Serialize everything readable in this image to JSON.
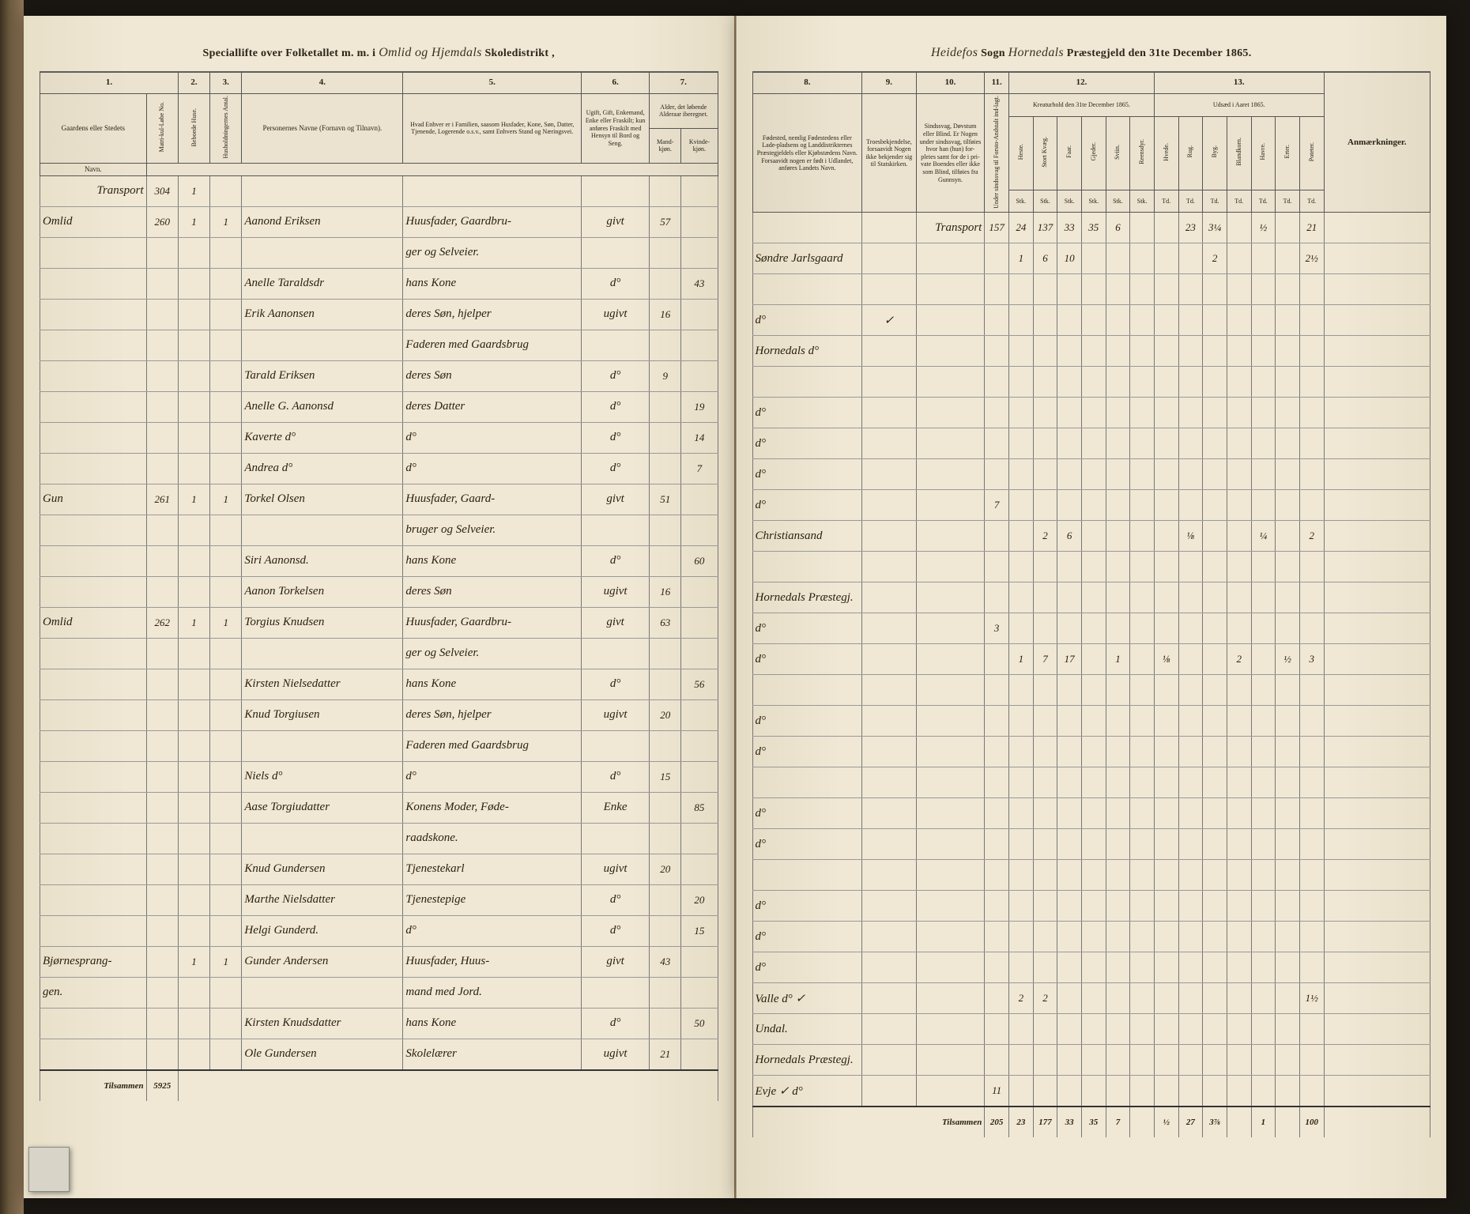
{
  "header_left": {
    "printed_pre": "Speciallifte over Folketallet m. m. i",
    "script_mid": "Omlid og Hjemdals",
    "printed_post": "Skoledistrikt ,"
  },
  "header_right": {
    "script_pre": "Heidefos",
    "printed_sogn": "Sogn",
    "script_mid": "Hornedals",
    "printed_post": "Præstegjeld den 31te December 1865."
  },
  "col_nums_left": [
    "1.",
    "2.",
    "3.",
    "4.",
    "5.",
    "6.",
    "7."
  ],
  "col_nums_right": [
    "8.",
    "9.",
    "10.",
    "11.",
    "12.",
    "13."
  ],
  "left_headers": {
    "gaardens": "Gaardens eller Stedets",
    "navn": "Navn.",
    "matr": "Matri-kul-Løbe No.",
    "bebo": "Beboede Huse.",
    "hush": "Husholdningernes Antal.",
    "personernes": "Personernes Navne (Fornavn og Tilnavn).",
    "stand": "Hvad Enhver er i Familien, saasom Husfader, Kone, Søn, Datter, Tjenende, Logerende o.s.v., samt Enhvers Stand og Næringsvei.",
    "ugift": "Ugift, Gift, Enkemand, Enke eller Fraskilt; kun anføres Fraskilt med Hensyn til Bord og Seng.",
    "alder": "Alder, det løbende Alderaar iberegnet.",
    "mk": "Mand-kjøn.",
    "kv": "Kvinde-kjøn."
  },
  "right_headers": {
    "fodested": "Fødested, nemlig Fødestedens eller Lade-pladsens og Landdistrikternes Præstegjeldels eller Kjøbstædens Navn. Forsaavidt nogen er født i Udlandet, anføres Landets Navn.",
    "tro": "Troesbekjendelse, forsaavidt Nogen ikke bekjender sig til Statskirken.",
    "sind": "Sindssvag, Døvstum eller Blind. Er Nogen under sindssvag, tilføies hvor han (hun) for-pleies samt for de i pri-vate Boendes eller ikke som Blind, tilføies fra Gunnsyn.",
    "anke": "Under sindssvag til Forsto-Andstalt ind-lagt.",
    "kreaturhold": "Kreaturhold den 31te December 1865.",
    "udsad": "Udsæd i Aaret 1865.",
    "k_heste": "Heste.",
    "k_stort": "Stort Kvæg.",
    "k_faar": "Faar.",
    "k_gjeder": "Gjeder.",
    "k_sviin": "Sviin.",
    "k_reen": "Reensdyr.",
    "u_hvede": "Hvede.",
    "u_rug": "Rug.",
    "u_byg": "Byg.",
    "u_bland": "Blandkorn.",
    "u_havre": "Havre.",
    "u_erter": "Erter.",
    "u_pot": "Poteter.",
    "anm": "Anmærkninger."
  },
  "stk": "Stk.",
  "td": "Td.",
  "transport_label": "Transport",
  "tilsammen_label": "Tilsammen",
  "transport_left_matr": "304",
  "rows_left": [
    {
      "gaard": "Omlid",
      "matr": "260",
      "b": "1",
      "h": "1",
      "navn": "Aanond Eriksen",
      "stand": "Huusfader, Gaardbru-",
      "ugift": "givt",
      "mk": "57",
      "kv": ""
    },
    {
      "gaard": "",
      "matr": "",
      "b": "",
      "h": "",
      "navn": "",
      "stand": "ger og Selveier.",
      "ugift": "",
      "mk": "",
      "kv": ""
    },
    {
      "gaard": "",
      "matr": "",
      "b": "",
      "h": "",
      "navn": "Anelle Taraldsdr",
      "stand": "hans Kone",
      "ugift": "d°",
      "mk": "",
      "kv": "43"
    },
    {
      "gaard": "",
      "matr": "",
      "b": "",
      "h": "",
      "navn": "Erik Aanonsen",
      "stand": "deres Søn, hjelper",
      "ugift": "ugivt",
      "mk": "16",
      "kv": ""
    },
    {
      "gaard": "",
      "matr": "",
      "b": "",
      "h": "",
      "navn": "",
      "stand": "Faderen med Gaardsbrug",
      "ugift": "",
      "mk": "",
      "kv": ""
    },
    {
      "gaard": "",
      "matr": "",
      "b": "",
      "h": "",
      "navn": "Tarald Eriksen",
      "stand": "deres Søn",
      "ugift": "d°",
      "mk": "9",
      "kv": ""
    },
    {
      "gaard": "",
      "matr": "",
      "b": "",
      "h": "",
      "navn": "Anelle G. Aanonsd",
      "stand": "deres Datter",
      "ugift": "d°",
      "mk": "",
      "kv": "19"
    },
    {
      "gaard": "",
      "matr": "",
      "b": "",
      "h": "",
      "navn": "Kaverte d°",
      "stand": "d°",
      "ugift": "d°",
      "mk": "",
      "kv": "14"
    },
    {
      "gaard": "",
      "matr": "",
      "b": "",
      "h": "",
      "navn": "Andrea d°",
      "stand": "d°",
      "ugift": "d°",
      "mk": "",
      "kv": "7"
    },
    {
      "gaard": "Gun",
      "matr": "261",
      "b": "1",
      "h": "1",
      "navn": "Torkel Olsen",
      "stand": "Huusfader, Gaard-",
      "ugift": "givt",
      "mk": "51",
      "kv": ""
    },
    {
      "gaard": "",
      "matr": "",
      "b": "",
      "h": "",
      "navn": "",
      "stand": "bruger og Selveier.",
      "ugift": "",
      "mk": "",
      "kv": ""
    },
    {
      "gaard": "",
      "matr": "",
      "b": "",
      "h": "",
      "navn": "Siri Aanonsd.",
      "stand": "hans Kone",
      "ugift": "d°",
      "mk": "",
      "kv": "60"
    },
    {
      "gaard": "",
      "matr": "",
      "b": "",
      "h": "",
      "navn": "Aanon Torkelsen",
      "stand": "deres Søn",
      "ugift": "ugivt",
      "mk": "16",
      "kv": ""
    },
    {
      "gaard": "Omlid",
      "matr": "262",
      "b": "1",
      "h": "1",
      "navn": "Torgius Knudsen",
      "stand": "Huusfader, Gaardbru-",
      "ugift": "givt",
      "mk": "63",
      "kv": ""
    },
    {
      "gaard": "",
      "matr": "",
      "b": "",
      "h": "",
      "navn": "",
      "stand": "ger og Selveier.",
      "ugift": "",
      "mk": "",
      "kv": ""
    },
    {
      "gaard": "",
      "matr": "",
      "b": "",
      "h": "",
      "navn": "Kirsten Nielsedatter",
      "stand": "hans Kone",
      "ugift": "d°",
      "mk": "",
      "kv": "56"
    },
    {
      "gaard": "",
      "matr": "",
      "b": "",
      "h": "",
      "navn": "Knud Torgiusen",
      "stand": "deres Søn, hjelper",
      "ugift": "ugivt",
      "mk": "20",
      "kv": ""
    },
    {
      "gaard": "",
      "matr": "",
      "b": "",
      "h": "",
      "navn": "",
      "stand": "Faderen med Gaardsbrug",
      "ugift": "",
      "mk": "",
      "kv": ""
    },
    {
      "gaard": "",
      "matr": "",
      "b": "",
      "h": "",
      "navn": "Niels d°",
      "stand": "d°",
      "ugift": "d°",
      "mk": "15",
      "kv": ""
    },
    {
      "gaard": "",
      "matr": "",
      "b": "",
      "h": "",
      "navn": "Aase Torgiudatter",
      "stand": "Konens Moder, Føde-",
      "ugift": "Enke",
      "mk": "",
      "kv": "85"
    },
    {
      "gaard": "",
      "matr": "",
      "b": "",
      "h": "",
      "navn": "",
      "stand": "raadskone.",
      "ugift": "",
      "mk": "",
      "kv": ""
    },
    {
      "gaard": "",
      "matr": "",
      "b": "",
      "h": "",
      "navn": "Knud Gundersen",
      "stand": "Tjenestekarl",
      "ugift": "ugivt",
      "mk": "20",
      "kv": ""
    },
    {
      "gaard": "",
      "matr": "",
      "b": "",
      "h": "",
      "navn": "Marthe Nielsdatter",
      "stand": "Tjenestepige",
      "ugift": "d°",
      "mk": "",
      "kv": "20"
    },
    {
      "gaard": "",
      "matr": "",
      "b": "",
      "h": "",
      "navn": "Helgi Gunderd.",
      "stand": "d°",
      "ugift": "d°",
      "mk": "",
      "kv": "15"
    },
    {
      "gaard": "Bjørnesprang-",
      "matr": "",
      "b": "1",
      "h": "1",
      "navn": "Gunder Andersen",
      "stand": "Huusfader, Huus-",
      "ugift": "givt",
      "mk": "43",
      "kv": ""
    },
    {
      "gaard": "gen.",
      "matr": "",
      "b": "",
      "h": "",
      "navn": "",
      "stand": "mand med Jord.",
      "ugift": "",
      "mk": "",
      "kv": ""
    },
    {
      "gaard": "",
      "matr": "",
      "b": "",
      "h": "",
      "navn": "Kirsten Knudsdatter",
      "stand": "hans Kone",
      "ugift": "d°",
      "mk": "",
      "kv": "50"
    },
    {
      "gaard": "",
      "matr": "",
      "b": "",
      "h": "",
      "navn": "Ole Gundersen",
      "stand": "Skolelærer",
      "ugift": "ugivt",
      "mk": "21",
      "kv": ""
    }
  ],
  "rows_right": [
    {
      "fode": "",
      "tro": "",
      "sind": "Transport",
      "anke": "157",
      "k": [
        "24",
        "137",
        "33",
        "35",
        "6",
        "",
        "",
        "23",
        "3¼",
        "",
        "½",
        "",
        "21"
      ]
    },
    {
      "fode": "Søndre Jarlsgaard",
      "tro": "",
      "sind": "",
      "anke": "",
      "k": [
        "1",
        "6",
        "10",
        "",
        "",
        "",
        "",
        "",
        "2",
        "",
        "",
        "",
        "2½"
      ]
    },
    {
      "fode": "",
      "tro": "",
      "sind": "",
      "anke": "",
      "k": [
        "",
        "",
        "",
        "",
        "",
        "",
        "",
        "",
        "",
        "",
        "",
        "",
        ""
      ]
    },
    {
      "fode": "d°",
      "tro": "✓",
      "sind": "",
      "anke": "",
      "k": [
        "",
        "",
        "",
        "",
        "",
        "",
        "",
        "",
        "",
        "",
        "",
        "",
        ""
      ]
    },
    {
      "fode": "Hornedals d°",
      "tro": "",
      "sind": "",
      "anke": "",
      "k": [
        "",
        "",
        "",
        "",
        "",
        "",
        "",
        "",
        "",
        "",
        "",
        "",
        ""
      ]
    },
    {
      "fode": "",
      "tro": "",
      "sind": "",
      "anke": "",
      "k": [
        "",
        "",
        "",
        "",
        "",
        "",
        "",
        "",
        "",
        "",
        "",
        "",
        ""
      ]
    },
    {
      "fode": "d°",
      "tro": "",
      "sind": "",
      "anke": "",
      "k": [
        "",
        "",
        "",
        "",
        "",
        "",
        "",
        "",
        "",
        "",
        "",
        "",
        ""
      ]
    },
    {
      "fode": "d°",
      "tro": "",
      "sind": "",
      "anke": "",
      "k": [
        "",
        "",
        "",
        "",
        "",
        "",
        "",
        "",
        "",
        "",
        "",
        "",
        ""
      ]
    },
    {
      "fode": "d°",
      "tro": "",
      "sind": "",
      "anke": "",
      "k": [
        "",
        "",
        "",
        "",
        "",
        "",
        "",
        "",
        "",
        "",
        "",
        "",
        ""
      ]
    },
    {
      "fode": "d°",
      "tro": "",
      "sind": "",
      "anke": "7",
      "k": [
        "",
        "",
        "",
        "",
        "",
        "",
        "",
        "",
        "",
        "",
        "",
        "",
        ""
      ]
    },
    {
      "fode": "Christiansand",
      "tro": "",
      "sind": "",
      "anke": "",
      "k": [
        "",
        "2",
        "6",
        "",
        "",
        "",
        "",
        "⅛",
        "",
        "",
        "¼",
        "",
        "2"
      ]
    },
    {
      "fode": "",
      "tro": "",
      "sind": "",
      "anke": "",
      "k": [
        "",
        "",
        "",
        "",
        "",
        "",
        "",
        "",
        "",
        "",
        "",
        "",
        ""
      ]
    },
    {
      "fode": "Hornedals Præstegj.",
      "tro": "",
      "sind": "",
      "anke": "",
      "k": [
        "",
        "",
        "",
        "",
        "",
        "",
        "",
        "",
        "",
        "",
        "",
        "",
        ""
      ]
    },
    {
      "fode": "d°",
      "tro": "",
      "sind": "",
      "anke": "3",
      "k": [
        "",
        "",
        "",
        "",
        "",
        "",
        "",
        "",
        "",
        "",
        "",
        "",
        ""
      ]
    },
    {
      "fode": "d°",
      "tro": "",
      "sind": "",
      "anke": "",
      "k": [
        "1",
        "7",
        "17",
        "",
        "1",
        "",
        "⅛",
        "",
        "",
        "2",
        "",
        "½",
        "3"
      ]
    },
    {
      "fode": "",
      "tro": "",
      "sind": "",
      "anke": "",
      "k": [
        "",
        "",
        "",
        "",
        "",
        "",
        "",
        "",
        "",
        "",
        "",
        "",
        ""
      ]
    },
    {
      "fode": "d°",
      "tro": "",
      "sind": "",
      "anke": "",
      "k": [
        "",
        "",
        "",
        "",
        "",
        "",
        "",
        "",
        "",
        "",
        "",
        "",
        ""
      ]
    },
    {
      "fode": "d°",
      "tro": "",
      "sind": "",
      "anke": "",
      "k": [
        "",
        "",
        "",
        "",
        "",
        "",
        "",
        "",
        "",
        "",
        "",
        "",
        ""
      ]
    },
    {
      "fode": "",
      "tro": "",
      "sind": "",
      "anke": "",
      "k": [
        "",
        "",
        "",
        "",
        "",
        "",
        "",
        "",
        "",
        "",
        "",
        "",
        ""
      ]
    },
    {
      "fode": "d°",
      "tro": "",
      "sind": "",
      "anke": "",
      "k": [
        "",
        "",
        "",
        "",
        "",
        "",
        "",
        "",
        "",
        "",
        "",
        "",
        ""
      ]
    },
    {
      "fode": "d°",
      "tro": "",
      "sind": "",
      "anke": "",
      "k": [
        "",
        "",
        "",
        "",
        "",
        "",
        "",
        "",
        "",
        "",
        "",
        "",
        ""
      ]
    },
    {
      "fode": "",
      "tro": "",
      "sind": "",
      "anke": "",
      "k": [
        "",
        "",
        "",
        "",
        "",
        "",
        "",
        "",
        "",
        "",
        "",
        "",
        ""
      ]
    },
    {
      "fode": "d°",
      "tro": "",
      "sind": "",
      "anke": "",
      "k": [
        "",
        "",
        "",
        "",
        "",
        "",
        "",
        "",
        "",
        "",
        "",
        "",
        ""
      ]
    },
    {
      "fode": "d°",
      "tro": "",
      "sind": "",
      "anke": "",
      "k": [
        "",
        "",
        "",
        "",
        "",
        "",
        "",
        "",
        "",
        "",
        "",
        "",
        ""
      ]
    },
    {
      "fode": "d°",
      "tro": "",
      "sind": "",
      "anke": "",
      "k": [
        "",
        "",
        "",
        "",
        "",
        "",
        "",
        "",
        "",
        "",
        "",
        "",
        ""
      ]
    },
    {
      "fode": "Valle d° ✓",
      "tro": "",
      "sind": "",
      "anke": "",
      "k": [
        "2",
        "2",
        "",
        "",
        "",
        "",
        "",
        "",
        "",
        "",
        "",
        "",
        "1½"
      ]
    },
    {
      "fode": "Undal.",
      "tro": "",
      "sind": "",
      "anke": "",
      "k": [
        "",
        "",
        "",
        "",
        "",
        "",
        "",
        "",
        "",
        "",
        "",
        "",
        ""
      ]
    },
    {
      "fode": "Hornedals Præstegj.",
      "tro": "",
      "sind": "",
      "anke": "",
      "k": [
        "",
        "",
        "",
        "",
        "",
        "",
        "",
        "",
        "",
        "",
        "",
        "",
        ""
      ]
    },
    {
      "fode": "Evje ✓ d°",
      "tro": "",
      "sind": "",
      "anke": "11",
      "k": [
        "",
        "",
        "",
        "",
        "",
        "",
        "",
        "",
        "",
        "",
        "",
        "",
        ""
      ]
    }
  ],
  "tilsammen_left": "5925",
  "tilsammen_right": [
    "205",
    "23",
    "177",
    "33",
    "35",
    "7",
    "",
    "½",
    "27",
    "3⅞",
    "",
    "1",
    "",
    "100"
  ]
}
